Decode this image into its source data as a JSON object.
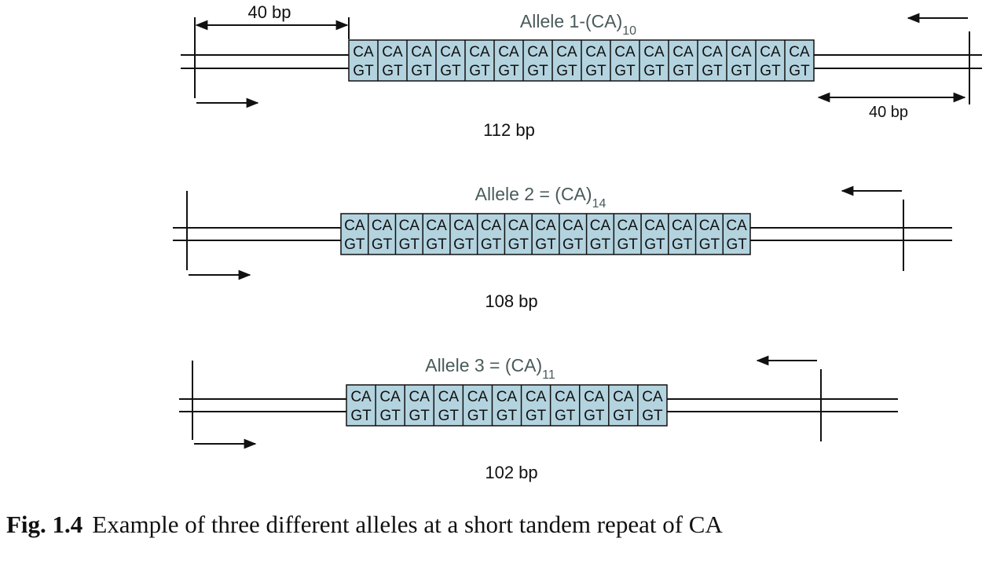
{
  "diagram": {
    "repeat_top": "CA",
    "repeat_bottom": "GT",
    "flank_label": "40 bp",
    "alleles": [
      {
        "title": "Allele 1-(CA)",
        "subscript": "10",
        "repeat_cells": 16,
        "size": "112 bp"
      },
      {
        "title": "Allele 2 = (CA)",
        "subscript": "14",
        "repeat_cells": 15,
        "size": "108 bp"
      },
      {
        "title": "Allele 3 = (CA)",
        "subscript": "11",
        "repeat_cells": 11,
        "size": "102 bp"
      }
    ]
  },
  "caption": {
    "number": "Fig. 1.4",
    "text": "Example of three different alleles at a short tandem repeat of CA"
  },
  "colors": {
    "repeat_fill": "#b3d3df",
    "line": "#111111",
    "title_text": "#4a5a5a"
  }
}
